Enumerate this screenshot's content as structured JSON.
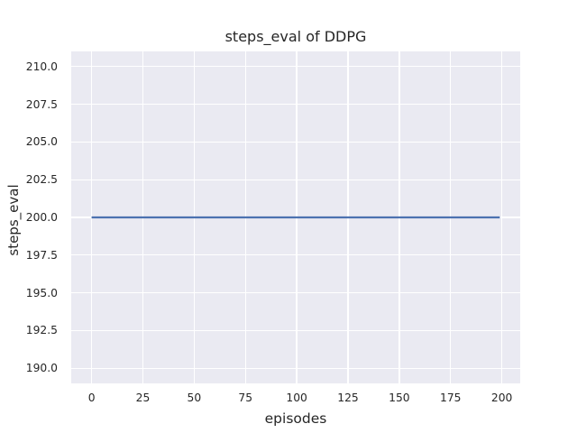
{
  "figure": {
    "background": "#ffffff",
    "plot_background": "#eaeaf2",
    "grid_color": "#ffffff",
    "text_color": "#262626"
  },
  "chart_data": {
    "type": "line",
    "title": "steps_eval of DDPG",
    "xlabel": "episodes",
    "ylabel": "steps_eval",
    "xlim": [
      -9.95,
      208.95
    ],
    "ylim": [
      189,
      211
    ],
    "xticks": [
      0,
      25,
      50,
      75,
      100,
      125,
      150,
      175,
      200
    ],
    "xtick_labels": [
      "0",
      "25",
      "50",
      "75",
      "100",
      "125",
      "150",
      "175",
      "200"
    ],
    "yticks": [
      190,
      192.5,
      195,
      197.5,
      200,
      202.5,
      205,
      207.5,
      210
    ],
    "ytick_labels": [
      "190.0",
      "192.5",
      "195.0",
      "197.5",
      "200.0",
      "202.5",
      "205.0",
      "207.5",
      "210.0"
    ],
    "grid": true,
    "legend": "none",
    "series": [
      {
        "name": "steps_eval",
        "color": "#4c72b0",
        "linewidth": 2.2,
        "x": [
          0,
          199
        ],
        "y": [
          200,
          200
        ]
      }
    ]
  }
}
